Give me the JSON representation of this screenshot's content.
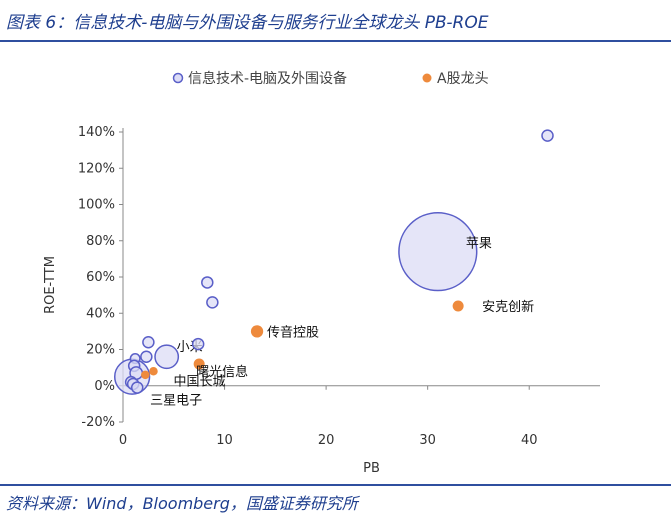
{
  "figure": {
    "title": "图表 6：信息技术-电脑与外围设备与服务行业全球龙头 PB-ROE",
    "source": "资料来源：Wind，Bloomberg，国盛证券研究所"
  },
  "colors": {
    "global_fill": "#dcdcf6",
    "global_stroke": "#5a5fc8",
    "a_share": "#ee8a3c",
    "title_blue": "#1f3f8f",
    "axis": "#888888"
  },
  "chart_data": {
    "type": "scatter",
    "subtype": "bubble",
    "xlabel": "PB",
    "ylabel": "ROE-TTM",
    "xlim": [
      0,
      45
    ],
    "ylim": [
      -0.2,
      1.4
    ],
    "xticks": [
      "0",
      "10",
      "20",
      "30",
      "40"
    ],
    "xtick_values": [
      0,
      10,
      20,
      30,
      40
    ],
    "yticks": [
      "-20%",
      "0%",
      "20%",
      "40%",
      "60%",
      "80%",
      "100%",
      "120%",
      "140%"
    ],
    "ytick_values": [
      -0.2,
      0,
      0.2,
      0.4,
      0.6,
      0.8,
      1.0,
      1.2,
      1.4
    ],
    "legend_position": "top",
    "series": [
      {
        "name": "信息技术-电脑及外围设备",
        "points": [
          {
            "x": 31.0,
            "y": 0.74,
            "size": 100,
            "label": "苹果"
          },
          {
            "x": 41.8,
            "y": 1.38,
            "size": 2,
            "label": ""
          },
          {
            "x": 8.3,
            "y": 0.57,
            "size": 2,
            "label": ""
          },
          {
            "x": 8.8,
            "y": 0.46,
            "size": 2,
            "label": ""
          },
          {
            "x": 0.9,
            "y": 0.05,
            "size": 20,
            "label": "三星电子"
          },
          {
            "x": 4.3,
            "y": 0.16,
            "size": 9,
            "label": "小米"
          },
          {
            "x": 2.5,
            "y": 0.24,
            "size": 2,
            "label": ""
          },
          {
            "x": 2.3,
            "y": 0.16,
            "size": 2,
            "label": ""
          },
          {
            "x": 7.4,
            "y": 0.23,
            "size": 2,
            "label": ""
          },
          {
            "x": 1.2,
            "y": 0.15,
            "size": 1.5,
            "label": ""
          },
          {
            "x": 1.1,
            "y": 0.11,
            "size": 2,
            "label": ""
          },
          {
            "x": 1.3,
            "y": 0.07,
            "size": 2.5,
            "label": ""
          },
          {
            "x": 0.8,
            "y": 0.02,
            "size": 2,
            "label": ""
          },
          {
            "x": 1.0,
            "y": 0.01,
            "size": 2,
            "label": ""
          },
          {
            "x": 1.4,
            "y": -0.01,
            "size": 2,
            "label": ""
          }
        ]
      },
      {
        "name": "A股龙头",
        "points": [
          {
            "x": 13.2,
            "y": 0.3,
            "size": 2.5,
            "label": "传音控股"
          },
          {
            "x": 7.5,
            "y": 0.12,
            "size": 2,
            "label": "曙光信息"
          },
          {
            "x": 3.0,
            "y": 0.08,
            "size": 1.2,
            "label": "中国长城"
          },
          {
            "x": 33.0,
            "y": 0.44,
            "size": 2,
            "label": "安克创新"
          },
          {
            "x": 2.2,
            "y": 0.06,
            "size": 1.2,
            "label": ""
          }
        ]
      }
    ]
  }
}
